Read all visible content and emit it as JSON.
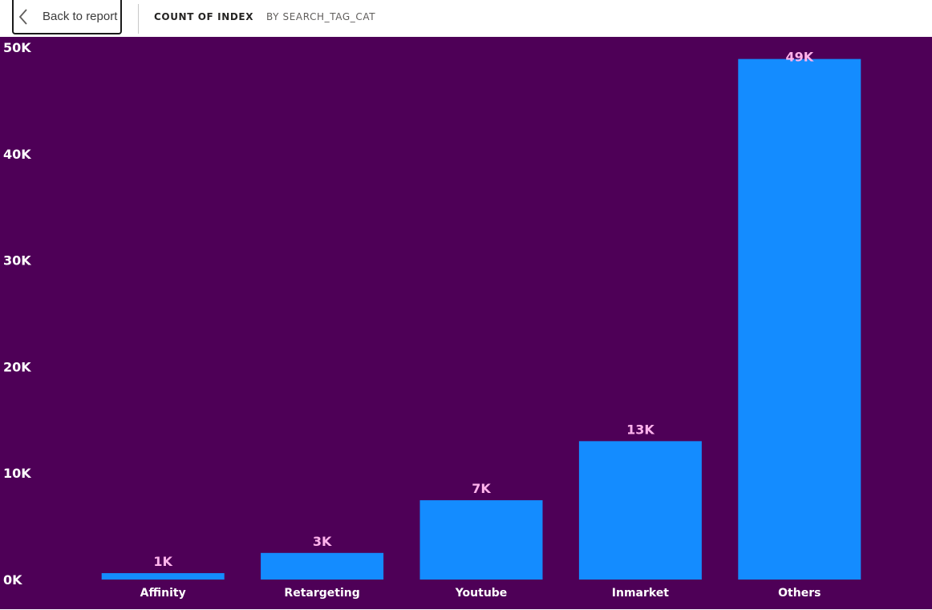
{
  "header": {
    "back_label": "Back to report",
    "title": "COUNT OF INDEX",
    "subtitle": "BY SEARCH_TAG_CAT",
    "back_icon": "chevron-left-icon"
  },
  "colors": {
    "background": "#4e0057",
    "bar": "#148cff",
    "data_label": "#ffb3ec",
    "axis_text": "#ffffff"
  },
  "chart_data": {
    "type": "bar",
    "title": "COUNT OF INDEX",
    "subtitle": "BY SEARCH_TAG_CAT",
    "categories": [
      "Affinity",
      "Retargeting",
      "Youtube",
      "Inmarket",
      "Others"
    ],
    "values": [
      600,
      2500,
      7450,
      13000,
      48900
    ],
    "data_labels": [
      "1K",
      "3K",
      "7K",
      "13K",
      "49K"
    ],
    "ylim": [
      0,
      50000
    ],
    "yticks": [
      0,
      10000,
      20000,
      30000,
      40000,
      50000
    ],
    "ytick_labels": [
      "0K",
      "10K",
      "20K",
      "30K",
      "40K",
      "50K"
    ],
    "grid": false,
    "legend": "none"
  }
}
